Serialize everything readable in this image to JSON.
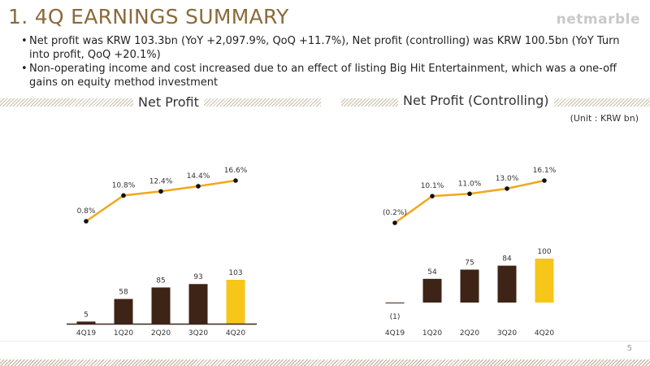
{
  "header": {
    "title": "1. 4Q EARNINGS SUMMARY",
    "logo": "netmarble"
  },
  "bullets": [
    "Net profit was KRW 103.3bn (YoY +2,097.9%, QoQ +11.7%), Net profit (controlling) was KRW 100.5bn (YoY Turn into profit, QoQ +20.1%)",
    "Non-operating income and cost increased due to an effect of listing Big Hit Entertainment, which was a one-off gains on equity method investment"
  ],
  "unit_label": "(Unit : KRW bn)",
  "page_number": "5",
  "colors": {
    "title": "#8a6a3a",
    "bar_dark": "#3d2417",
    "bar_highlight": "#f6c619",
    "line": "#f0a81c"
  },
  "chart_data": [
    {
      "type": "bar+line",
      "title": "Net Profit",
      "categories": [
        "4Q19",
        "1Q20",
        "2Q20",
        "3Q20",
        "4Q20"
      ],
      "bar_values": [
        5,
        58,
        85,
        93,
        103
      ],
      "bar_labels": [
        "5",
        "58",
        "85",
        "93",
        "103"
      ],
      "line_values": [
        0.8,
        10.8,
        12.4,
        14.4,
        16.6
      ],
      "line_labels": [
        "0.8%",
        "10.8%",
        "12.4%",
        "14.4%",
        "16.6%"
      ]
    },
    {
      "type": "bar+line",
      "title": "Net Profit (Controlling)",
      "categories": [
        "4Q19",
        "1Q20",
        "2Q20",
        "3Q20",
        "4Q20"
      ],
      "bar_values": [
        -1,
        54,
        75,
        84,
        100
      ],
      "bar_labels": [
        "(1)",
        "54",
        "75",
        "84",
        "100"
      ],
      "line_values": [
        -0.2,
        10.1,
        11.0,
        13.0,
        16.1
      ],
      "line_labels": [
        "(0.2%)",
        "10.1%",
        "11.0%",
        "13.0%",
        "16.1%"
      ]
    }
  ]
}
